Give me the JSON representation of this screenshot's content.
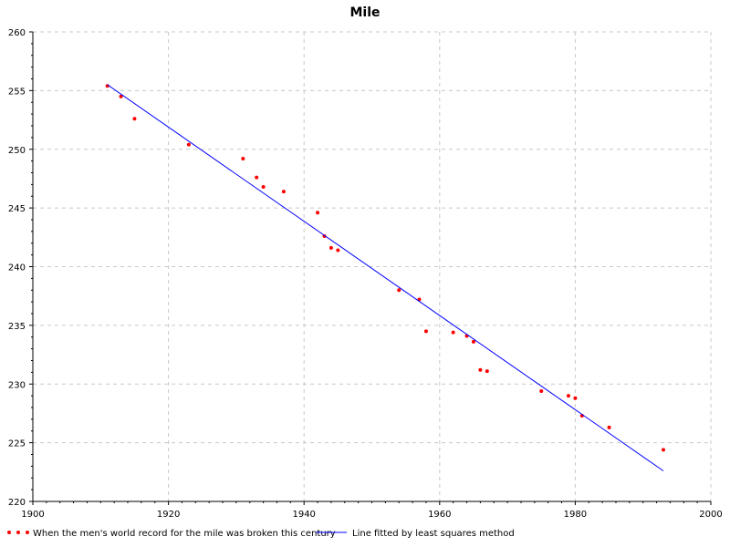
{
  "chart_data": {
    "type": "scatter",
    "title": "Mile",
    "xlabel": "",
    "ylabel": "",
    "xlim": [
      1900,
      2000
    ],
    "ylim": [
      220,
      260
    ],
    "x_ticks": [
      1900,
      1920,
      1940,
      1960,
      1980,
      2000
    ],
    "y_ticks": [
      220,
      225,
      230,
      235,
      240,
      245,
      250,
      255,
      260
    ],
    "grid": true,
    "legend_position": "bottom",
    "series": [
      {
        "name": "When the men's world record for the mile was broken this century",
        "kind": "scatter",
        "color": "#ff0000",
        "points": [
          [
            1911,
            255.4
          ],
          [
            1913,
            254.5
          ],
          [
            1915,
            252.6
          ],
          [
            1923,
            250.4
          ],
          [
            1931,
            249.2
          ],
          [
            1933,
            247.6
          ],
          [
            1934,
            246.8
          ],
          [
            1937,
            246.4
          ],
          [
            1942,
            244.6
          ],
          [
            1943,
            242.6
          ],
          [
            1944,
            241.6
          ],
          [
            1945,
            241.4
          ],
          [
            1954,
            238.0
          ],
          [
            1957,
            237.2
          ],
          [
            1958,
            234.5
          ],
          [
            1962,
            234.4
          ],
          [
            1964,
            234.1
          ],
          [
            1965,
            233.6
          ],
          [
            1966,
            231.2
          ],
          [
            1967,
            231.1
          ],
          [
            1975,
            229.4
          ],
          [
            1979,
            229.0
          ],
          [
            1980,
            228.8
          ],
          [
            1981,
            227.3
          ],
          [
            1985,
            226.3
          ],
          [
            1993,
            224.4
          ]
        ]
      },
      {
        "name": "Line fitted by least squares method",
        "kind": "line",
        "color": "#0000ff",
        "points": [
          [
            1911,
            255.5
          ],
          [
            1993,
            222.6
          ]
        ]
      }
    ]
  }
}
